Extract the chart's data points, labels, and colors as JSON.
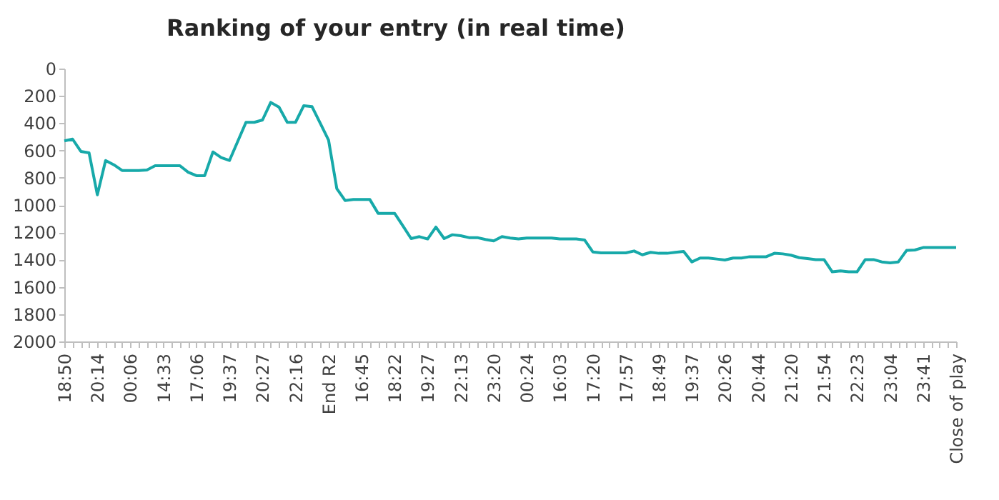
{
  "chart_data": {
    "type": "line",
    "title": "Ranking of your entry (in real time)",
    "categories": [
      "18:50",
      null,
      null,
      null,
      "20:14",
      null,
      null,
      null,
      "00:06",
      null,
      null,
      null,
      "14:33",
      null,
      null,
      null,
      "17:06",
      null,
      null,
      null,
      "19:37",
      null,
      null,
      null,
      "20:27",
      null,
      null,
      null,
      "22:16",
      null,
      null,
      null,
      "End R2",
      null,
      null,
      null,
      "16:45",
      null,
      null,
      null,
      "18:22",
      null,
      null,
      null,
      "19:27",
      null,
      null,
      null,
      "22:13",
      null,
      null,
      null,
      "23:20",
      null,
      null,
      null,
      "00:24",
      null,
      null,
      null,
      "16:03",
      null,
      null,
      null,
      "17:20",
      null,
      null,
      null,
      "17:57",
      null,
      null,
      null,
      "18:49",
      null,
      null,
      null,
      "19:37",
      null,
      null,
      null,
      "20:26",
      null,
      null,
      null,
      "20:44",
      null,
      null,
      null,
      "21:20",
      null,
      null,
      null,
      "21:54",
      null,
      null,
      null,
      "22:23",
      null,
      null,
      null,
      "23:04",
      null,
      null,
      null,
      "23:41",
      null,
      null,
      null,
      "Close of play"
    ],
    "series": [
      {
        "color": "#17a9a9",
        "values": [
          530,
          517,
          607,
          618,
          925,
          674,
          705,
          747,
          747,
          747,
          743,
          712,
          712,
          712,
          712,
          760,
          785,
          785,
          611,
          653,
          674,
          534,
          394,
          394,
          377,
          248,
          283,
          394,
          394,
          272,
          279,
          401,
          524,
          880,
          967,
          960,
          960,
          960,
          1061,
          1061,
          1061,
          1152,
          1246,
          1232,
          1249,
          1162,
          1246,
          1218,
          1225,
          1239,
          1239,
          1253,
          1263,
          1232,
          1242,
          1249,
          1242,
          1242,
          1242,
          1242,
          1249,
          1249,
          1249,
          1256,
          1344,
          1351,
          1351,
          1351,
          1351,
          1337,
          1365,
          1347,
          1354,
          1354,
          1347,
          1340,
          1417,
          1389,
          1389,
          1396,
          1403,
          1389,
          1389,
          1379,
          1379,
          1379,
          1354,
          1358,
          1368,
          1386,
          1393,
          1400,
          1400,
          1490,
          1483,
          1490,
          1490,
          1400,
          1400,
          1417,
          1424,
          1417,
          1333,
          1330,
          1312,
          1312,
          1312,
          1312,
          1312
        ]
      }
    ],
    "ylim": [
      2000,
      0
    ],
    "yticks": [
      0,
      200,
      400,
      600,
      800,
      1000,
      1200,
      1400,
      1600,
      1800,
      2000
    ],
    "grid": false,
    "legend": false,
    "line_style": "solid",
    "marker": "none"
  }
}
